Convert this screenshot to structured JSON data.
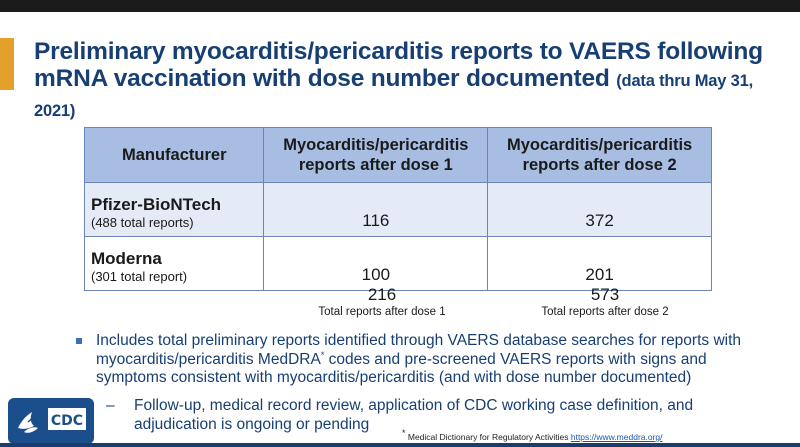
{
  "title": {
    "main": "Preliminary myocarditis/pericarditis reports to VAERS following mRNA vaccination with dose number documented",
    "sub": "(data thru May 31, 2021)"
  },
  "table": {
    "headers": [
      "Manufacturer",
      "Myocarditis/pericarditis reports after dose 1",
      "Myocarditis/pericarditis reports after dose 2"
    ],
    "rows": [
      {
        "manufacturer": "Pfizer-BioNTech",
        "note": "(488 total reports)",
        "dose1": "116",
        "dose2": "372"
      },
      {
        "manufacturer": "Moderna",
        "note": "(301 total report)",
        "dose1": "100",
        "dose2": "201"
      }
    ],
    "totals": {
      "dose1_value": "216",
      "dose1_label": "Total reports after dose 1",
      "dose2_value": "573",
      "dose2_label": "Total reports after dose 2"
    }
  },
  "bullet": {
    "part1": "Includes total preliminary reports identified through VAERS database searches for reports with myocarditis/pericarditis MedDRA",
    "sup": "*",
    "part2": " codes and pre-screened VAERS reports with signs and symptoms consistent with myocarditis/pericarditis (and with dose number documented)"
  },
  "subbullet": {
    "dash": "–",
    "text": "Follow-up, medical record review, application of CDC working case definition, and adjudication is ongoing or pending"
  },
  "footnote": {
    "mark": "*",
    "text": " Medical Dictionary for Regulatory Activities ",
    "link": "https://www.meddra.org/"
  },
  "logo": {
    "text": "CDC",
    "icon": "hhs-eagle-icon"
  },
  "colors": {
    "title": "#173f73",
    "accent": "#e3a12b",
    "header_fill": "#a7bde2",
    "row_fill": "#e4eaf6"
  }
}
